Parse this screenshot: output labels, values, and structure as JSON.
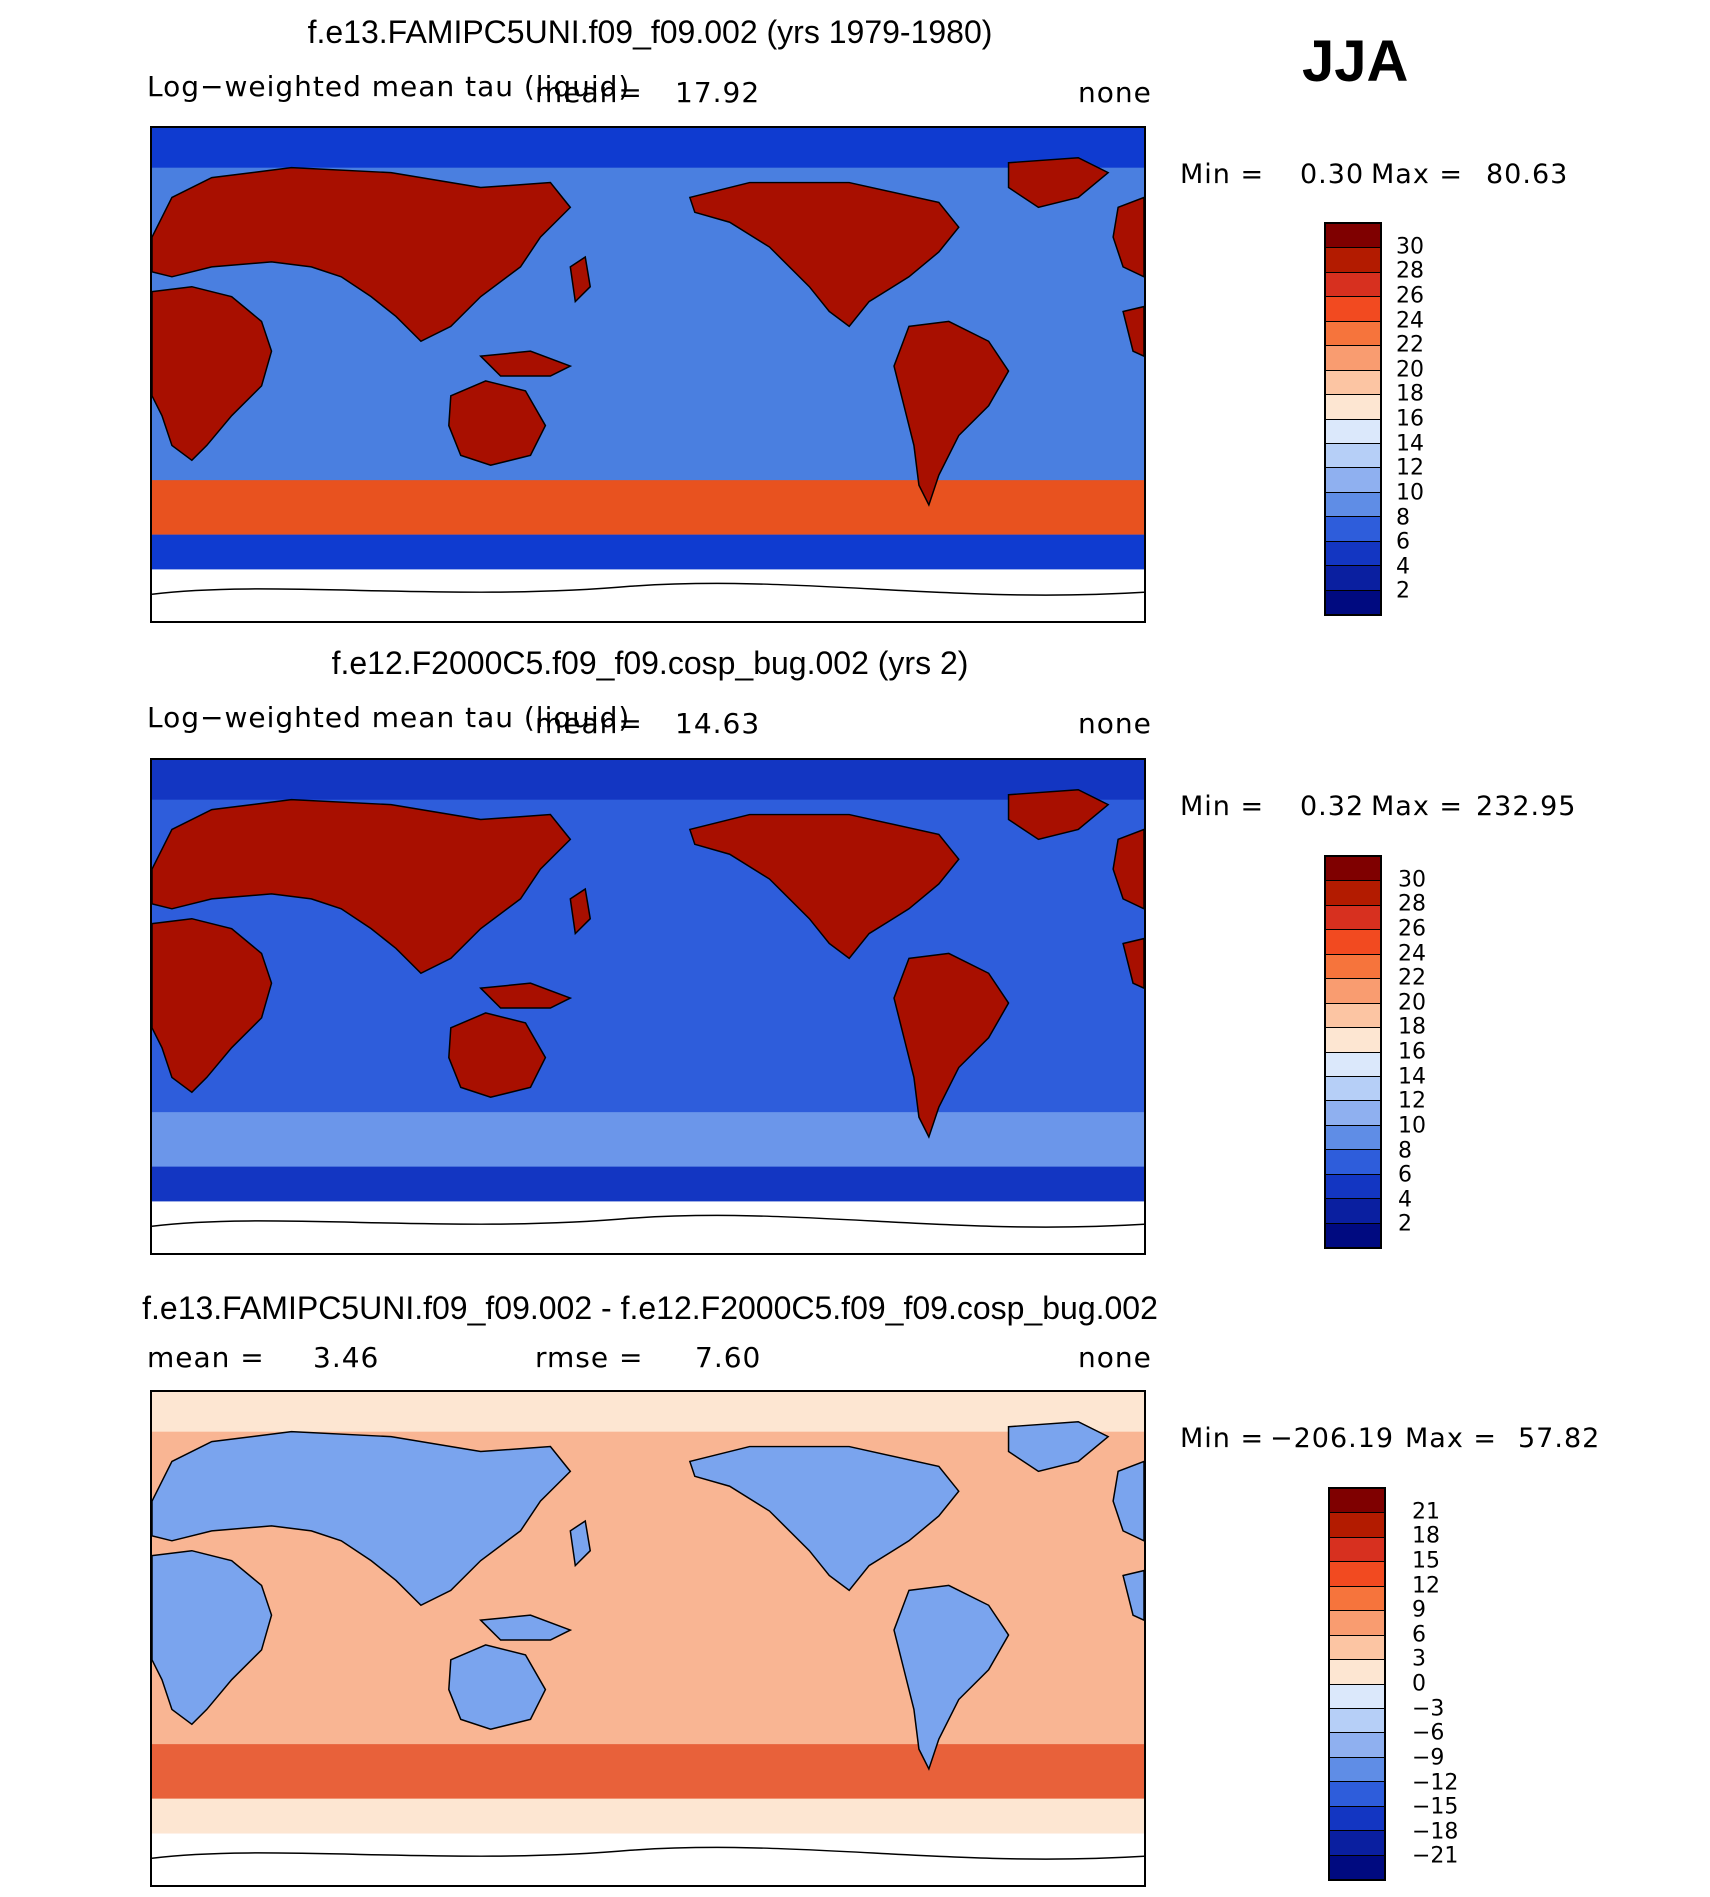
{
  "season": "JJA",
  "panels": [
    {
      "title": "f.e13.FAMIPC5UNI.f09_f09.002 (yrs 1979-1980)",
      "variable": "Log−weighted mean tau (liquid)",
      "mean_label": "mean=",
      "mean_value": "17.92",
      "units": "none",
      "min_label": "Min =",
      "min_value": "0.30",
      "max_label": "Max =",
      "max_value": "80.63",
      "colorbar": {
        "labels": [
          "30",
          "28",
          "26",
          "24",
          "22",
          "20",
          "18",
          "16",
          "14",
          "12",
          "10",
          "8",
          "6",
          "4",
          "2"
        ],
        "colors": [
          "#7f0000",
          "#b31b00",
          "#d7301f",
          "#f24a20",
          "#f6743c",
          "#f99c70",
          "#fcc5a3",
          "#fde6d2",
          "#dbe8fb",
          "#b6cff7",
          "#8fb0f0",
          "#5f8de6",
          "#2e5ddb",
          "#1336c2",
          "#0a1fa0",
          "#000a80"
        ]
      },
      "map_palette": {
        "ocean": "#4a7fe0",
        "polar": "#0f3bd0",
        "land": "#a80f00",
        "storm": "#e8521f",
        "ice": "#ffffff"
      }
    },
    {
      "title": "f.e12.F2000C5.f09_f09.cosp_bug.002 (yrs 2)",
      "variable": "Log−weighted mean tau (liquid)",
      "mean_label": "mean=",
      "mean_value": "14.63",
      "units": "none",
      "min_label": "Min =",
      "min_value": "0.32",
      "max_label": "Max =",
      "max_value": "232.95",
      "colorbar": {
        "labels": [
          "30",
          "28",
          "26",
          "24",
          "22",
          "20",
          "18",
          "16",
          "14",
          "12",
          "10",
          "8",
          "6",
          "4",
          "2"
        ],
        "colors": [
          "#7f0000",
          "#b31b00",
          "#d7301f",
          "#f24a20",
          "#f6743c",
          "#f99c70",
          "#fcc5a3",
          "#fde6d2",
          "#dbe8fb",
          "#b6cff7",
          "#8fb0f0",
          "#5f8de6",
          "#2e5ddb",
          "#1336c2",
          "#0a1fa0",
          "#000a80"
        ]
      },
      "map_palette": {
        "ocean": "#2e5ddb",
        "polar": "#1336c2",
        "land": "#a80f00",
        "storm": "#6b96ea",
        "ice": "#ffffff"
      }
    },
    {
      "title": "f.e13.FAMIPC5UNI.f09_f09.002 - f.e12.F2000C5.f09_f09.cosp_bug.002",
      "mean_label": "mean =",
      "mean_value": "3.46",
      "rmse_label": "rmse =",
      "rmse_value": "7.60",
      "units": "none",
      "min_label": "Min =",
      "min_value": "−206.19",
      "max_label": "Max =",
      "max_value": "57.82",
      "colorbar": {
        "labels": [
          "21",
          "18",
          "15",
          "12",
          "9",
          "6",
          "3",
          "0",
          "−3",
          "−6",
          "−9",
          "−12",
          "−15",
          "−18",
          "−21"
        ],
        "colors": [
          "#7f0000",
          "#b31b00",
          "#d7301f",
          "#f24a20",
          "#f6743c",
          "#f99c70",
          "#fcc5a3",
          "#fde6d2",
          "#dbe8fb",
          "#b6cff7",
          "#8fb0f0",
          "#5f8de6",
          "#2e5ddb",
          "#1336c2",
          "#0a1fa0",
          "#000a80"
        ]
      },
      "map_palette": {
        "ocean": "#f9b593",
        "polar": "#fde6d2",
        "land": "#7aa4ee",
        "storm": "#e8613a",
        "ice": "#ffffff"
      }
    }
  ]
}
